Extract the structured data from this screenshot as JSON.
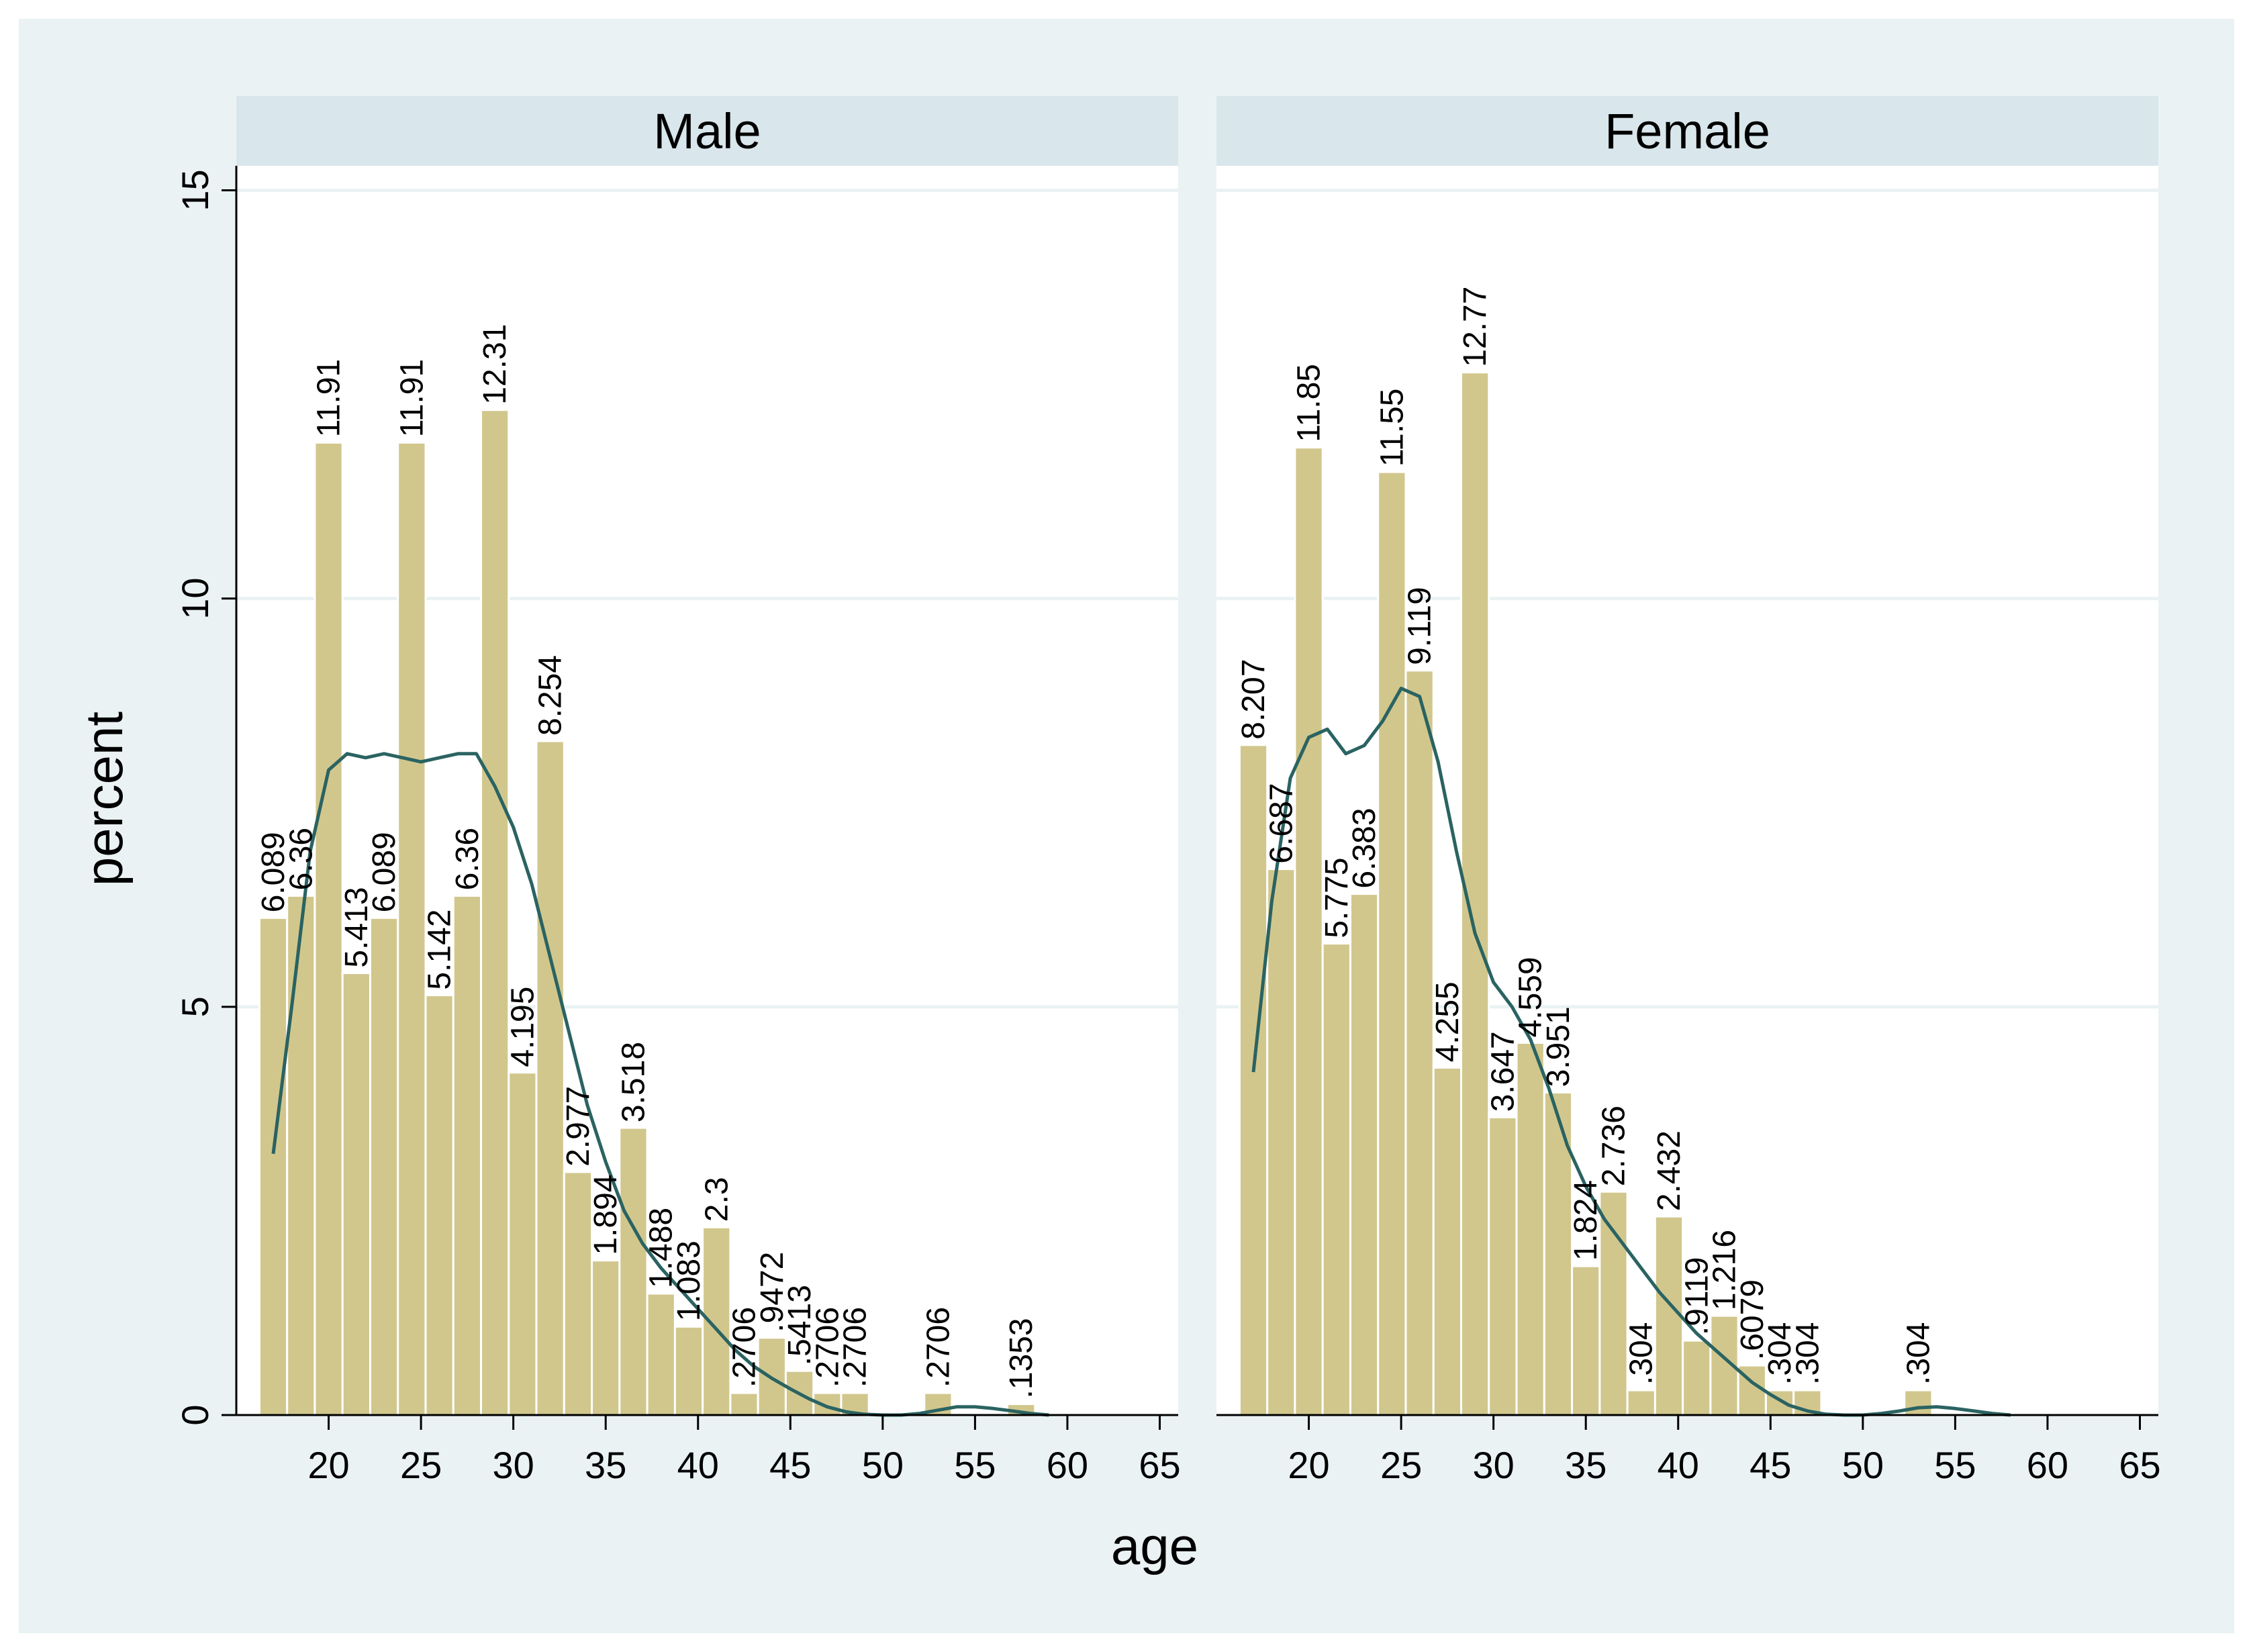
{
  "figure": {
    "background": "#ffffff",
    "graph_region_color": "#eaf2f3",
    "panel_background": "#ffffff",
    "strip_color": "#d9e6eb",
    "bar_fill": "#d1c78d",
    "bar_edge": "#ffffff",
    "density_color": "#2a6362",
    "grid_color": "#eaf2f3",
    "text_color": "#000000"
  },
  "chart_data": {
    "type": "bar",
    "subtype": "histogram with kernel density overlay, faceted by sex",
    "xlabel": "age",
    "ylabel": "percent",
    "xticks": [
      20,
      25,
      30,
      35,
      40,
      45,
      50,
      55,
      60,
      65
    ],
    "yticks": [
      0,
      5,
      10,
      15
    ],
    "xlim": [
      15,
      66
    ],
    "ylim": [
      0,
      15.3
    ],
    "grid": "horizontal",
    "bin_width": 1.5,
    "panels": [
      {
        "title": "Male",
        "bins": [
          {
            "x": 17,
            "value": 6.089,
            "label": "6.089"
          },
          {
            "x": 18.5,
            "value": 6.36,
            "label": "6.36"
          },
          {
            "x": 20,
            "value": 11.91,
            "label": "11.91"
          },
          {
            "x": 21.5,
            "value": 5.413,
            "label": "5.413"
          },
          {
            "x": 23,
            "value": 6.089,
            "label": "6.089"
          },
          {
            "x": 24.5,
            "value": 11.91,
            "label": "11.91"
          },
          {
            "x": 26,
            "value": 5.142,
            "label": "5.142"
          },
          {
            "x": 27.5,
            "value": 6.36,
            "label": "6.36"
          },
          {
            "x": 29,
            "value": 12.31,
            "label": "12.31"
          },
          {
            "x": 30.5,
            "value": 4.195,
            "label": "4.195"
          },
          {
            "x": 32,
            "value": 8.254,
            "label": "8.254"
          },
          {
            "x": 33.5,
            "value": 2.977,
            "label": "2.977"
          },
          {
            "x": 35,
            "value": 1.894,
            "label": "1.894"
          },
          {
            "x": 36.5,
            "value": 3.518,
            "label": "3.518"
          },
          {
            "x": 38,
            "value": 1.488,
            "label": "1.488"
          },
          {
            "x": 39.5,
            "value": 1.083,
            "label": "1.083"
          },
          {
            "x": 41,
            "value": 2.3,
            "label": "2.3"
          },
          {
            "x": 42.5,
            "value": 0.2706,
            "label": ".2706"
          },
          {
            "x": 44,
            "value": 0.9472,
            "label": ".9472"
          },
          {
            "x": 45.5,
            "value": 0.5413,
            "label": ".5413"
          },
          {
            "x": 47,
            "value": 0.2706,
            "label": ".2706"
          },
          {
            "x": 48.5,
            "value": 0.2706,
            "label": ".2706"
          },
          {
            "x": 53,
            "value": 0.2706,
            "label": ".2706"
          },
          {
            "x": 57.5,
            "value": 0.1353,
            "label": ".1353"
          }
        ],
        "density": [
          [
            17,
            3.2
          ],
          [
            18,
            5.0
          ],
          [
            19,
            6.9
          ],
          [
            20,
            7.9
          ],
          [
            21,
            8.1
          ],
          [
            22,
            8.05
          ],
          [
            23,
            8.1
          ],
          [
            24,
            8.05
          ],
          [
            25,
            8.0
          ],
          [
            26,
            8.05
          ],
          [
            27,
            8.1
          ],
          [
            28,
            8.1
          ],
          [
            29,
            7.7
          ],
          [
            30,
            7.2
          ],
          [
            31,
            6.5
          ],
          [
            32,
            5.6
          ],
          [
            33,
            4.7
          ],
          [
            34,
            3.8
          ],
          [
            35,
            3.1
          ],
          [
            36,
            2.5
          ],
          [
            37,
            2.1
          ],
          [
            38,
            1.8
          ],
          [
            39,
            1.55
          ],
          [
            40,
            1.3
          ],
          [
            41,
            1.05
          ],
          [
            42,
            0.8
          ],
          [
            43,
            0.6
          ],
          [
            44,
            0.45
          ],
          [
            45,
            0.32
          ],
          [
            46,
            0.2
          ],
          [
            47,
            0.1
          ],
          [
            48,
            0.04
          ],
          [
            49,
            0.01
          ],
          [
            50,
            0.0
          ],
          [
            51,
            0.0
          ],
          [
            52,
            0.02
          ],
          [
            53,
            0.06
          ],
          [
            54,
            0.1
          ],
          [
            55,
            0.1
          ],
          [
            56,
            0.08
          ],
          [
            57,
            0.05
          ],
          [
            58,
            0.02
          ],
          [
            59,
            0.0
          ]
        ]
      },
      {
        "title": "Female",
        "bins": [
          {
            "x": 17,
            "value": 8.207,
            "label": "8.207"
          },
          {
            "x": 18.5,
            "value": 6.687,
            "label": "6.687"
          },
          {
            "x": 20,
            "value": 11.85,
            "label": "11.85"
          },
          {
            "x": 21.5,
            "value": 5.775,
            "label": "5.775"
          },
          {
            "x": 23,
            "value": 6.383,
            "label": "6.383"
          },
          {
            "x": 24.5,
            "value": 11.55,
            "label": "11.55"
          },
          {
            "x": 26,
            "value": 9.119,
            "label": "9.119"
          },
          {
            "x": 27.5,
            "value": 4.255,
            "label": "4.255"
          },
          {
            "x": 29,
            "value": 12.77,
            "label": "12.77"
          },
          {
            "x": 30.5,
            "value": 3.647,
            "label": "3.647"
          },
          {
            "x": 32,
            "value": 4.559,
            "label": "4.559"
          },
          {
            "x": 33.5,
            "value": 3.951,
            "label": "3.951"
          },
          {
            "x": 35,
            "value": 1.824,
            "label": "1.824"
          },
          {
            "x": 36.5,
            "value": 2.736,
            "label": "2.736"
          },
          {
            "x": 38,
            "value": 0.304,
            "label": ".304"
          },
          {
            "x": 39.5,
            "value": 2.432,
            "label": "2.432"
          },
          {
            "x": 41,
            "value": 0.9119,
            "label": ".9119"
          },
          {
            "x": 42.5,
            "value": 1.216,
            "label": "1.216"
          },
          {
            "x": 44,
            "value": 0.6079,
            "label": ".6079"
          },
          {
            "x": 45.5,
            "value": 0.304,
            "label": ".304"
          },
          {
            "x": 47,
            "value": 0.304,
            "label": ".304"
          },
          {
            "x": 53,
            "value": 0.304,
            "label": ".304"
          }
        ],
        "density": [
          [
            17,
            4.2
          ],
          [
            18,
            6.3
          ],
          [
            19,
            7.8
          ],
          [
            20,
            8.3
          ],
          [
            21,
            8.4
          ],
          [
            22,
            8.1
          ],
          [
            23,
            8.2
          ],
          [
            24,
            8.5
          ],
          [
            25,
            8.9
          ],
          [
            26,
            8.8
          ],
          [
            27,
            8.0
          ],
          [
            28,
            6.9
          ],
          [
            29,
            5.9
          ],
          [
            30,
            5.3
          ],
          [
            31,
            5.0
          ],
          [
            32,
            4.6
          ],
          [
            33,
            4.0
          ],
          [
            34,
            3.3
          ],
          [
            35,
            2.8
          ],
          [
            36,
            2.4
          ],
          [
            37,
            2.1
          ],
          [
            38,
            1.8
          ],
          [
            39,
            1.5
          ],
          [
            40,
            1.25
          ],
          [
            41,
            1.0
          ],
          [
            42,
            0.8
          ],
          [
            43,
            0.6
          ],
          [
            44,
            0.4
          ],
          [
            45,
            0.25
          ],
          [
            46,
            0.12
          ],
          [
            47,
            0.05
          ],
          [
            48,
            0.01
          ],
          [
            49,
            0.0
          ],
          [
            50,
            0.0
          ],
          [
            51,
            0.02
          ],
          [
            52,
            0.05
          ],
          [
            53,
            0.09
          ],
          [
            54,
            0.1
          ],
          [
            55,
            0.08
          ],
          [
            56,
            0.05
          ],
          [
            57,
            0.02
          ],
          [
            58,
            0.0
          ]
        ]
      }
    ]
  }
}
